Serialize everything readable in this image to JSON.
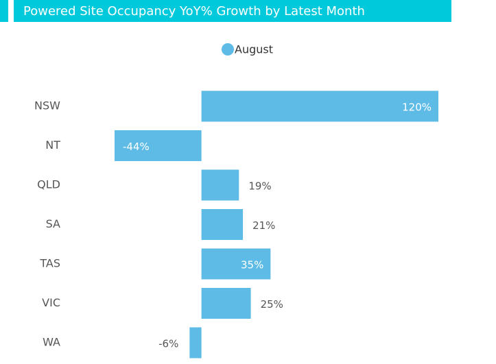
{
  "chart_data": {
    "type": "barh",
    "title": "Powered Site Occupancy YoY% Growth by Latest Month",
    "categories": [
      "NSW",
      "NT",
      "QLD",
      "SA",
      "TAS",
      "VIC",
      "WA"
    ],
    "series": [
      {
        "name": "August",
        "color": "#5ebbe6",
        "values": [
          120,
          -44,
          19,
          21,
          35,
          25,
          -6
        ],
        "value_labels": [
          "120%",
          "-44%",
          "19%",
          "21%",
          "35%",
          "25%",
          "-6%"
        ]
      }
    ],
    "title_color": "#00c9dc"
  }
}
